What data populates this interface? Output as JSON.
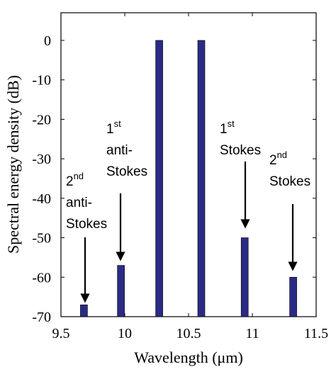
{
  "chart_data": {
    "type": "bar",
    "xlabel": "Wavelength (μm)",
    "ylabel": "Spectral energy density (dB)",
    "x": [
      9.68,
      9.97,
      10.27,
      10.6,
      10.94,
      11.32
    ],
    "values": [
      -67,
      -57,
      0,
      0,
      -50,
      -60
    ],
    "color": "#2b2b85",
    "xlim": [
      9.5,
      11.5
    ],
    "xticks": [
      9.5,
      10,
      10.5,
      11,
      11.5
    ],
    "ylim": [
      -70,
      7
    ],
    "yticks": [
      0,
      -10,
      -20,
      -30,
      -40,
      -50,
      -60,
      -70
    ],
    "annotations": [
      {
        "order": "2",
        "suffix": "nd",
        "lines": [
          "anti-",
          "Stokes"
        ]
      },
      {
        "order": "1",
        "suffix": "st",
        "lines": [
          "anti-",
          "Stokes"
        ]
      },
      {
        "order": "1",
        "suffix": "st",
        "lines": [
          "Stokes"
        ]
      },
      {
        "order": "2",
        "suffix": "nd",
        "lines": [
          "Stokes"
        ]
      }
    ]
  }
}
